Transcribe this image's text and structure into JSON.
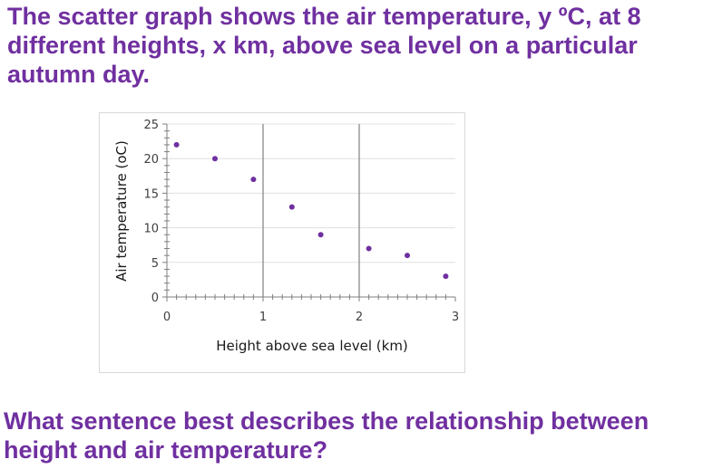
{
  "question": {
    "intro": "The scatter graph shows the air temperature, y ºC, at 8 different heights, x km, above sea level on a particular autumn day.",
    "prompt": "What sentence best describes the relationship between height and air temperature?"
  },
  "colors": {
    "text_accent": "#7030a0",
    "marker": "#7030a0",
    "gridline": "#e0e0e0",
    "vertical_lines": "#808080"
  },
  "chart_data": {
    "type": "scatter",
    "xlabel": "Height above sea level (km)",
    "ylabel": "Air temperature (oC)",
    "xlim": [
      0,
      3
    ],
    "ylim": [
      0,
      25
    ],
    "x_ticks": [
      0,
      1,
      2,
      3
    ],
    "y_ticks": [
      0,
      5,
      10,
      15,
      20,
      25
    ],
    "grid": "horizontal",
    "vertical_reference_lines_at": [
      1,
      2
    ],
    "legend": "none",
    "points": [
      {
        "x": 0.1,
        "y": 22
      },
      {
        "x": 0.5,
        "y": 20
      },
      {
        "x": 0.9,
        "y": 17
      },
      {
        "x": 1.3,
        "y": 13
      },
      {
        "x": 1.6,
        "y": 9
      },
      {
        "x": 2.1,
        "y": 7
      },
      {
        "x": 2.5,
        "y": 6
      },
      {
        "x": 2.9,
        "y": 3
      }
    ]
  }
}
